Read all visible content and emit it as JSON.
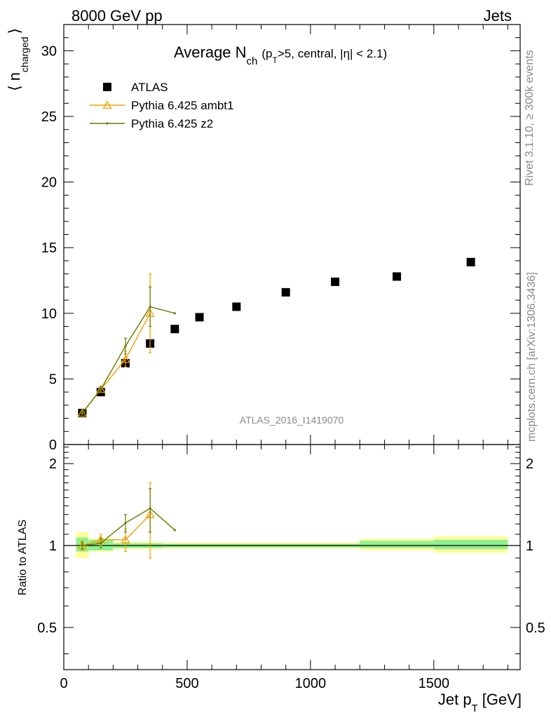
{
  "header": {
    "left": "8000 GeV pp",
    "right": "Jets"
  },
  "side_labels": {
    "rivet": "Rivet 3.1.10, ≥ 300k events",
    "mcplots": "mcplots.cern.ch [arXiv:1306.3436]"
  },
  "watermark": "ATLAS_2016_I1419070",
  "colors": {
    "atlas": "#000000",
    "ambt1": "#f0a000",
    "z2": "#6b7a00",
    "band_inner": "#90f090",
    "band_outer": "#ffff99"
  },
  "chart_data": [
    {
      "type": "scatter",
      "panel": "main",
      "title_parts": {
        "main": "Average N",
        "sub": "ch",
        "cond_open": "(p",
        "cond_sub": "T",
        "cond_rest": ">5, central, |η| < 2.1)"
      },
      "ylabel_parts": {
        "open": "⟨ n",
        "sub": "charged",
        "close": "⟩"
      },
      "xlabel_parts": {
        "main": "Jet p",
        "sub": "T",
        "unit": "[GeV]"
      },
      "xlim": [
        0,
        1850
      ],
      "ylim": [
        0,
        32
      ],
      "x_ticks": [
        "0",
        "500",
        "1000",
        "1500"
      ],
      "y_ticks": [
        "0",
        "5",
        "10",
        "15",
        "20",
        "25",
        "30"
      ],
      "legend_position": "top-left",
      "series": [
        {
          "name": "ATLAS",
          "marker": "square",
          "x": [
            75,
            150,
            250,
            350,
            450,
            550,
            700,
            900,
            1100,
            1350,
            1650
          ],
          "y": [
            2.4,
            4.0,
            6.2,
            7.7,
            8.8,
            9.7,
            10.5,
            11.6,
            12.4,
            12.8,
            13.9
          ]
        },
        {
          "name": "Pythia 6.425 ambt1",
          "marker": "triangle",
          "x": [
            75,
            150,
            250,
            350
          ],
          "y": [
            2.4,
            4.2,
            6.5,
            10.0
          ],
          "yerr": [
            0.1,
            0.2,
            0.6,
            3.0
          ]
        },
        {
          "name": "Pythia 6.425 z2",
          "marker": "dot",
          "x": [
            75,
            150,
            250,
            350,
            450
          ],
          "y": [
            2.4,
            4.2,
            7.5,
            10.5,
            10.0
          ],
          "yerr": [
            0.1,
            0.2,
            0.6,
            1.5,
            0.0
          ]
        }
      ]
    },
    {
      "type": "line",
      "panel": "ratio",
      "ylabel": "Ratio to ATLAS",
      "xlim": [
        0,
        1850
      ],
      "ylim": [
        0.35,
        2.35
      ],
      "y_ticks": [
        "0.5",
        "1",
        "2"
      ],
      "bands": [
        {
          "x0": 50,
          "x1": 100,
          "inner": [
            0.95,
            1.07
          ],
          "outer": [
            0.9,
            1.12
          ]
        },
        {
          "x0": 100,
          "x1": 200,
          "inner": [
            0.96,
            1.05
          ],
          "outer": [
            0.95,
            1.06
          ]
        },
        {
          "x0": 200,
          "x1": 400,
          "inner": [
            0.98,
            1.02
          ],
          "outer": [
            0.97,
            1.03
          ]
        },
        {
          "x0": 400,
          "x1": 1200,
          "inner": [
            0.985,
            1.015
          ],
          "outer": [
            0.975,
            1.025
          ]
        },
        {
          "x0": 1200,
          "x1": 1500,
          "inner": [
            0.98,
            1.04
          ],
          "outer": [
            0.96,
            1.06
          ]
        },
        {
          "x0": 1500,
          "x1": 1800,
          "inner": [
            0.97,
            1.05
          ],
          "outer": [
            0.94,
            1.08
          ]
        }
      ],
      "series": [
        {
          "name": "Pythia 6.425 ambt1",
          "x": [
            75,
            150,
            250,
            350
          ],
          "y": [
            1.0,
            1.05,
            1.05,
            1.3
          ],
          "yerr": [
            0.04,
            0.05,
            0.1,
            0.4
          ]
        },
        {
          "name": "Pythia 6.425 z2",
          "x": [
            75,
            150,
            250,
            350,
            450
          ],
          "y": [
            1.0,
            1.02,
            1.21,
            1.37,
            1.14
          ],
          "yerr": [
            0.03,
            0.04,
            0.09,
            0.25,
            0.0
          ]
        }
      ]
    }
  ]
}
